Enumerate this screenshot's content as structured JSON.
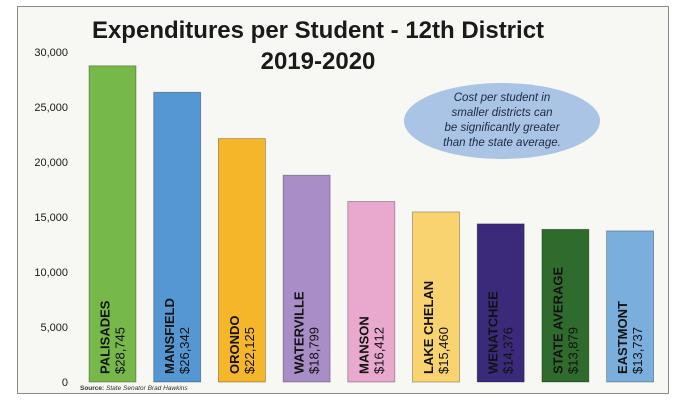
{
  "chart_data": {
    "type": "bar",
    "title_line1": "Expenditures per Student - 12th District",
    "title_line2": "2019-2020",
    "xlabel": "",
    "ylabel": "",
    "ylim": [
      0,
      30000
    ],
    "y_ticks": [
      "0",
      "5,000",
      "10,000",
      "15,000",
      "20,000",
      "25,000",
      "30,000"
    ],
    "categories": [
      "PALISADES",
      "MANSFIELD",
      "ORONDO",
      "WATERVILLE",
      "MANSON",
      "LAKE CHELAN",
      "WENATCHEE",
      "STATE AVERAGE",
      "EASTMONT"
    ],
    "values": [
      28745,
      26342,
      22125,
      18799,
      16412,
      15460,
      14376,
      13879,
      13737
    ],
    "value_labels": [
      "$28,745",
      "$26,342",
      "$22,125",
      "$18,799",
      "$16,412",
      "$15,460",
      "$14,376",
      "$13,879",
      "$13,737"
    ],
    "colors": [
      "#76b84a",
      "#5497d2",
      "#f5b62a",
      "#a98dc6",
      "#e9a9cf",
      "#f8d36f",
      "#3b2a7a",
      "#2f6b2c",
      "#7aaedc"
    ],
    "label_dark": [
      true,
      true,
      true,
      true,
      true,
      true,
      false,
      false,
      true
    ],
    "callout": {
      "lines": [
        "Cost per student in",
        "smaller districts can",
        "be significantly greater",
        "than the state average."
      ],
      "color": "#a9c4e4"
    },
    "grid": false,
    "legend": "none"
  },
  "source": {
    "label": "Source:",
    "text": "State Senator Brad Hawkins"
  }
}
